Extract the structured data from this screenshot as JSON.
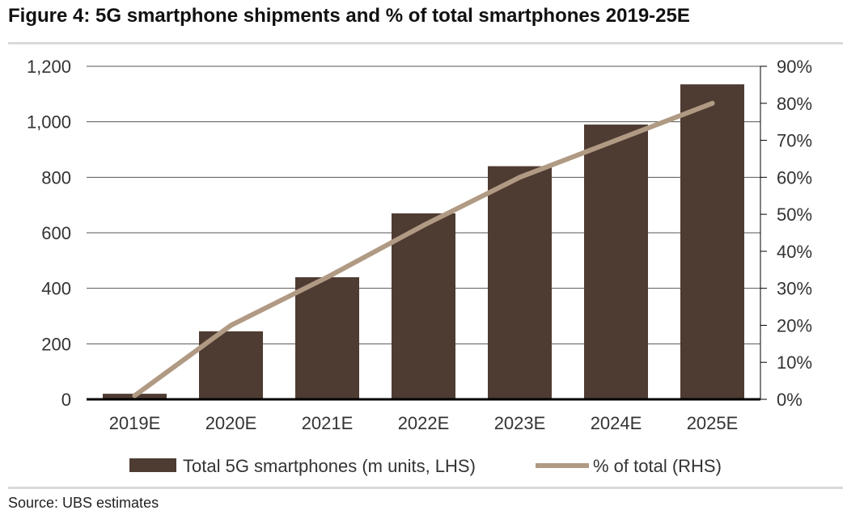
{
  "title": "Figure 4: 5G smartphone shipments and % of total smartphones 2019-25E",
  "source": "Source:  UBS estimates",
  "colors": {
    "bar": "#4e3b31",
    "line": "#b09a84",
    "grid": "#555555",
    "axis": "#000000"
  },
  "chart_data": {
    "type": "bar",
    "categories": [
      "2019E",
      "2020E",
      "2021E",
      "2022E",
      "2023E",
      "2024E",
      "2025E"
    ],
    "series": [
      {
        "name": "Total 5G smartphones (m units, LHS)",
        "type": "bar",
        "axis": "left",
        "values": [
          20,
          245,
          440,
          670,
          840,
          990,
          1135
        ]
      },
      {
        "name": "% of total (RHS)",
        "type": "line",
        "axis": "right",
        "values": [
          1,
          20,
          33,
          47,
          60,
          70,
          80
        ]
      }
    ],
    "ylim": [
      0,
      1200
    ],
    "y2lim": [
      0,
      90
    ],
    "yticks": [
      "0",
      "200",
      "400",
      "600",
      "800",
      "1,000",
      "1,200"
    ],
    "y2ticks": [
      "0%",
      "10%",
      "20%",
      "30%",
      "40%",
      "50%",
      "60%",
      "70%",
      "80%",
      "90%"
    ],
    "grid": true,
    "legend": "bottom"
  }
}
